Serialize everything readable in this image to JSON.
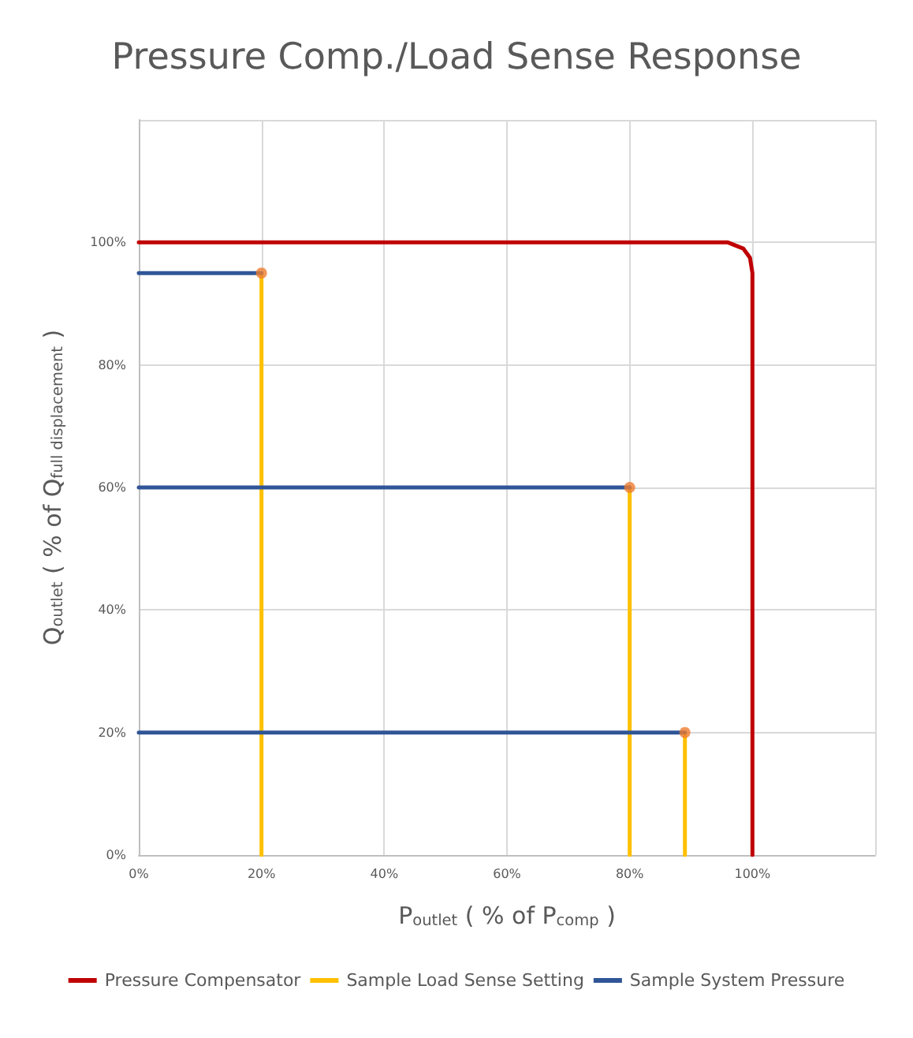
{
  "chart_data": {
    "type": "line",
    "title": "Pressure Comp./Load Sense Response",
    "xlabel": "P$_{outlet}$ ( % of P$_{comp}$ )",
    "ylabel": "Q$_{outlet}$ ( % of Q$_{full displacement}$ )",
    "xlim": [
      0,
      120
    ],
    "ylim": [
      0,
      120
    ],
    "xticks": [
      {
        "value": 0,
        "label": "0%"
      },
      {
        "value": 20,
        "label": "20%"
      },
      {
        "value": 40,
        "label": "40%"
      },
      {
        "value": 60,
        "label": "60%"
      },
      {
        "value": 80,
        "label": "80%"
      },
      {
        "value": 100,
        "label": "100%"
      },
      {
        "value": 120,
        "label": null
      }
    ],
    "yticks": [
      {
        "value": 0,
        "label": "0%"
      },
      {
        "value": 20,
        "label": "20%"
      },
      {
        "value": 40,
        "label": "40%"
      },
      {
        "value": 60,
        "label": "60%"
      },
      {
        "value": 80,
        "label": "80%"
      },
      {
        "value": 100,
        "label": "100%"
      },
      {
        "value": 120,
        "label": null
      }
    ],
    "grid": true,
    "legend": "bottom",
    "marker": "none",
    "line_style": "solid",
    "series": [
      {
        "name": "Pressure Compensator",
        "color": "#c00000",
        "x": [
          0,
          96,
          98.5,
          99.6,
          100,
          100
        ],
        "values": [
          100,
          100,
          99,
          97.5,
          95,
          0
        ]
      },
      {
        "name": "Sample Load Sense Setting",
        "color": "#ffc000",
        "x": [
          20,
          20,
          null,
          80,
          80,
          null,
          89,
          89
        ],
        "values": [
          0,
          95,
          null,
          0,
          60,
          null,
          0,
          20
        ]
      },
      {
        "name": "Sample System Pressure",
        "color": "#2f5597",
        "x": [
          0,
          20,
          null,
          0,
          80,
          null,
          0,
          89
        ],
        "values": [
          95,
          95,
          null,
          60,
          60,
          null,
          20,
          20
        ]
      },
      {
        "type": "scatter",
        "color": "#ed7d31",
        "marker": "circle",
        "x": [
          20,
          80,
          89
        ],
        "values": [
          95,
          60,
          20
        ]
      }
    ]
  }
}
